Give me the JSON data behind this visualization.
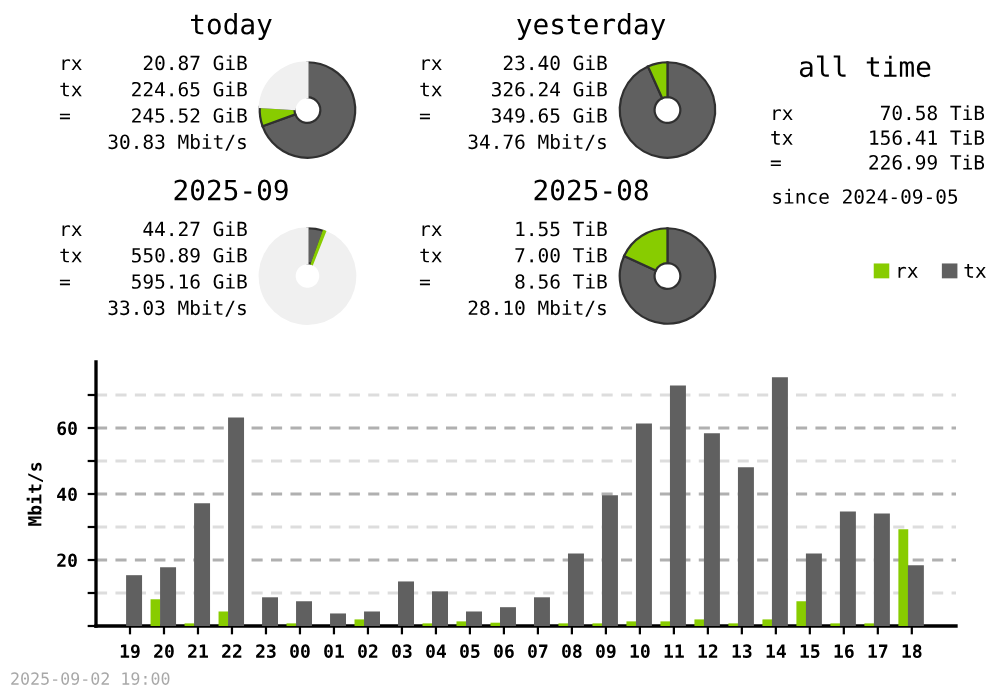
{
  "chart_data": [
    {
      "type": "donut",
      "title": "today",
      "categories": [
        null,
        null,
        null
      ],
      "values": [
        69.5,
        6.5,
        24.0
      ],
      "colors": [
        "#606060",
        "#88cc00",
        "#f0f0f0"
      ],
      "annotations": [
        "rx 20.87 GiB",
        "tx 224.65 GiB",
        "= 245.52 GiB",
        "30.83 Mbit/s"
      ]
    },
    {
      "type": "donut",
      "title": "yesterday",
      "categories": [
        null,
        null
      ],
      "values": [
        93.3,
        6.7
      ],
      "colors": [
        "#606060",
        "#88cc00"
      ],
      "annotations": [
        "rx 23.40 GiB",
        "tx 326.24 GiB",
        "= 349.65 GiB",
        "34.76 Mbit/s"
      ]
    },
    {
      "type": "donut",
      "title": "2025-09",
      "categories": [
        null,
        null,
        null
      ],
      "values": [
        5.5,
        0.5,
        94.0
      ],
      "colors": [
        "#606060",
        "#88cc00",
        "#f0f0f0"
      ],
      "annotations": [
        "rx 44.27 GiB",
        "tx 550.89 GiB",
        "= 595.16 GiB",
        "33.03 Mbit/s"
      ]
    },
    {
      "type": "donut",
      "title": "2025-08",
      "categories": [
        null,
        null
      ],
      "values": [
        81.9,
        18.1
      ],
      "colors": [
        "#606060",
        "#88cc00"
      ],
      "annotations": [
        "rx 1.55 TiB",
        "tx 7.00 TiB",
        "= 8.56 TiB",
        "28.10 Mbit/s"
      ]
    },
    {
      "type": "other",
      "title": "all time",
      "annotations": [
        "rx 70.58 TiB",
        "tx 156.41 TiB",
        "= 226.99 TiB",
        "since 2024-09-05"
      ]
    },
    {
      "type": "bar",
      "ylabel": "Mbit/s",
      "categories": [
        "19",
        "20",
        "21",
        "22",
        "23",
        "00",
        "01",
        "02",
        "03",
        "04",
        "05",
        "06",
        "07",
        "08",
        "09",
        "10",
        "11",
        "12",
        "13",
        "14",
        "15",
        "16",
        "17",
        "18"
      ],
      "series": [
        {
          "name": "rx",
          "color": "#88cc00",
          "values": [
            0,
            8.1,
            0.8,
            4.4,
            0,
            0.8,
            0,
            2.0,
            0,
            0.8,
            1.4,
            1.0,
            0,
            0.8,
            0.8,
            1.4,
            1.4,
            2.0,
            0.8,
            2.0,
            7.5,
            0.8,
            0.8,
            29.3
          ]
        },
        {
          "name": "tx",
          "color": "#606060",
          "values": [
            15.4,
            17.8,
            37.2,
            63.2,
            8.7,
            7.5,
            3.8,
            4.4,
            13.5,
            10.5,
            4.4,
            5.7,
            8.7,
            22.0,
            39.6,
            61.4,
            72.9,
            58.4,
            48.1,
            75.4,
            22.0,
            34.7,
            34.1,
            18.4
          ]
        }
      ],
      "ylim": [
        0,
        80
      ],
      "yticks": [
        {
          "value": 0,
          "label": null
        },
        {
          "value": 10,
          "label": null
        },
        20,
        {
          "value": 30,
          "label": null
        },
        40,
        {
          "value": 50,
          "label": null
        },
        60,
        {
          "value": 70,
          "label": null
        }
      ],
      "grid": "y",
      "legend": "top right",
      "annotations": [
        "2025-09-02 19:00"
      ]
    }
  ]
}
